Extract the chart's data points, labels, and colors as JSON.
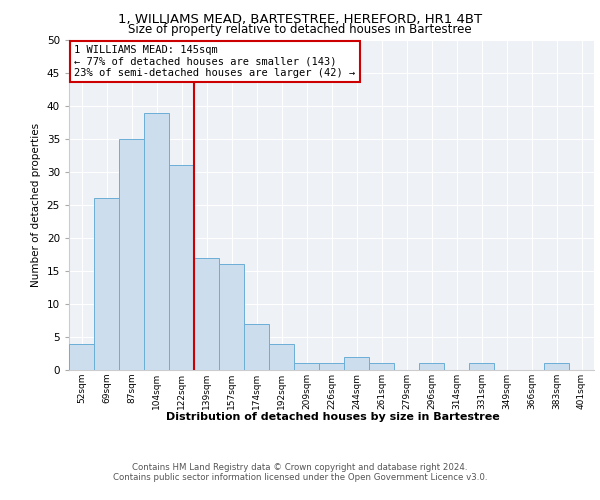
{
  "title1": "1, WILLIAMS MEAD, BARTESTREE, HEREFORD, HR1 4BT",
  "title2": "Size of property relative to detached houses in Bartestree",
  "xlabel": "Distribution of detached houses by size in Bartestree",
  "ylabel": "Number of detached properties",
  "footer1": "Contains HM Land Registry data © Crown copyright and database right 2024.",
  "footer2": "Contains public sector information licensed under the Open Government Licence v3.0.",
  "bar_labels": [
    "52sqm",
    "69sqm",
    "87sqm",
    "104sqm",
    "122sqm",
    "139sqm",
    "157sqm",
    "174sqm",
    "192sqm",
    "209sqm",
    "226sqm",
    "244sqm",
    "261sqm",
    "279sqm",
    "296sqm",
    "314sqm",
    "331sqm",
    "349sqm",
    "366sqm",
    "383sqm",
    "401sqm"
  ],
  "bar_values": [
    4,
    26,
    35,
    39,
    31,
    17,
    16,
    7,
    4,
    1,
    1,
    2,
    1,
    0,
    1,
    0,
    1,
    0,
    0,
    1,
    0
  ],
  "bar_color": "#ccdded",
  "bar_edge_color": "#6aaed6",
  "property_label": "1 WILLIAMS MEAD: 145sqm",
  "annotation_line1": "← 77% of detached houses are smaller (143)",
  "annotation_line2": "23% of semi-detached houses are larger (42) →",
  "vline_color": "#cc0000",
  "annotation_box_color": "#cc0000",
  "ylim": [
    0,
    50
  ],
  "yticks": [
    0,
    5,
    10,
    15,
    20,
    25,
    30,
    35,
    40,
    45,
    50
  ],
  "plot_bg_color": "#eef2f7"
}
